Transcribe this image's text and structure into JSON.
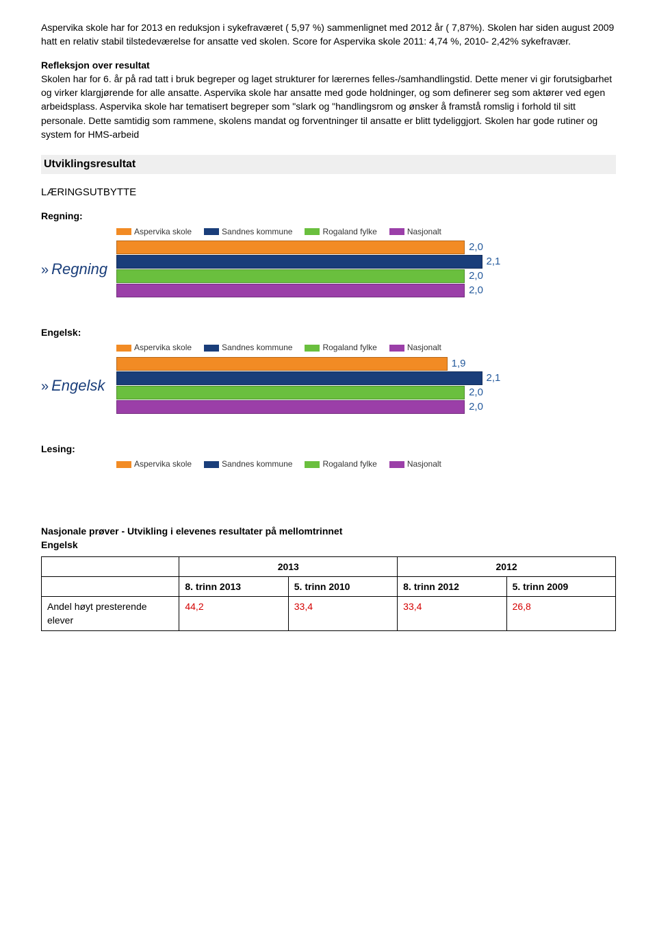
{
  "paragraphs": {
    "p1": "Aspervika skole har for 2013 en reduksjon i sykefraværet ( 5,97 %) sammenlignet med 2012 år ( 7,87%). Skolen har siden august 2009 hatt en relativ stabil tilstedeværelse for ansatte ved skolen. Score for Aspervika skole 2011: 4,74 %,  2010-  2,42% sykefravær.",
    "reflHead": "Refleksjon over resultat",
    "p2": "Skolen har for 6. år på rad tatt i bruk begreper og laget strukturer for lærernes felles-/samhandlingstid. Dette mener vi gir forutsigbarhet og virker klargjørende for alle ansatte. Aspervika skole har ansatte med gode holdninger, og som definerer seg som aktører ved egen arbeidsplass. Aspervika skole har tematisert begreper som \"slark og \"handlingsrom og ønsker å framstå romslig i forhold til sitt personale. Dette samtidig som rammene, skolens mandat og forventninger til ansatte er blitt tydeliggjort. Skolen har gode rutiner og system for HMS-arbeid"
  },
  "sections": {
    "utv": "Utviklingsresultat",
    "laer": "LÆRINGSUTBYTTE"
  },
  "legend": {
    "items": [
      {
        "label": "Aspervika skole",
        "color": "#f28b24"
      },
      {
        "label": "Sandnes kommune",
        "color": "#1a3e7a"
      },
      {
        "label": "Rogaland fylke",
        "color": "#6abf3e"
      },
      {
        "label": "Nasjonalt",
        "color": "#9b3fa8"
      }
    ]
  },
  "charts": {
    "regning": {
      "title": "Regning:",
      "ylabel": "Regning",
      "max": 2.2,
      "bars": [
        {
          "color": "#f28b24",
          "value": 2.0,
          "label": "2,0"
        },
        {
          "color": "#1a3e7a",
          "value": 2.1,
          "label": "2,1"
        },
        {
          "color": "#6abf3e",
          "value": 2.0,
          "label": "2,0"
        },
        {
          "color": "#9b3fa8",
          "value": 2.0,
          "label": "2,0"
        }
      ]
    },
    "engelsk": {
      "title": "Engelsk:",
      "ylabel": "Engelsk",
      "max": 2.2,
      "bars": [
        {
          "color": "#f28b24",
          "value": 1.9,
          "label": "1,9"
        },
        {
          "color": "#1a3e7a",
          "value": 2.1,
          "label": "2,1"
        },
        {
          "color": "#6abf3e",
          "value": 2.0,
          "label": "2,0"
        },
        {
          "color": "#9b3fa8",
          "value": 2.0,
          "label": "2,0"
        }
      ]
    },
    "lesing": {
      "title": "Lesing:"
    }
  },
  "table": {
    "title_l1": "Nasjonale prøver - Utvikling i elevenes resultater på mellomtrinnet",
    "title_l2": "Engelsk",
    "header_years": [
      "2013",
      "2012"
    ],
    "cols": [
      "8. trinn 2013",
      "5. trinn 2010",
      "8. trinn 2012",
      "5. trinn 2009"
    ],
    "row_label": "Andel høyt presterende elever",
    "row_vals": [
      "44,2",
      "33,4",
      "33,4",
      "26,8"
    ]
  }
}
